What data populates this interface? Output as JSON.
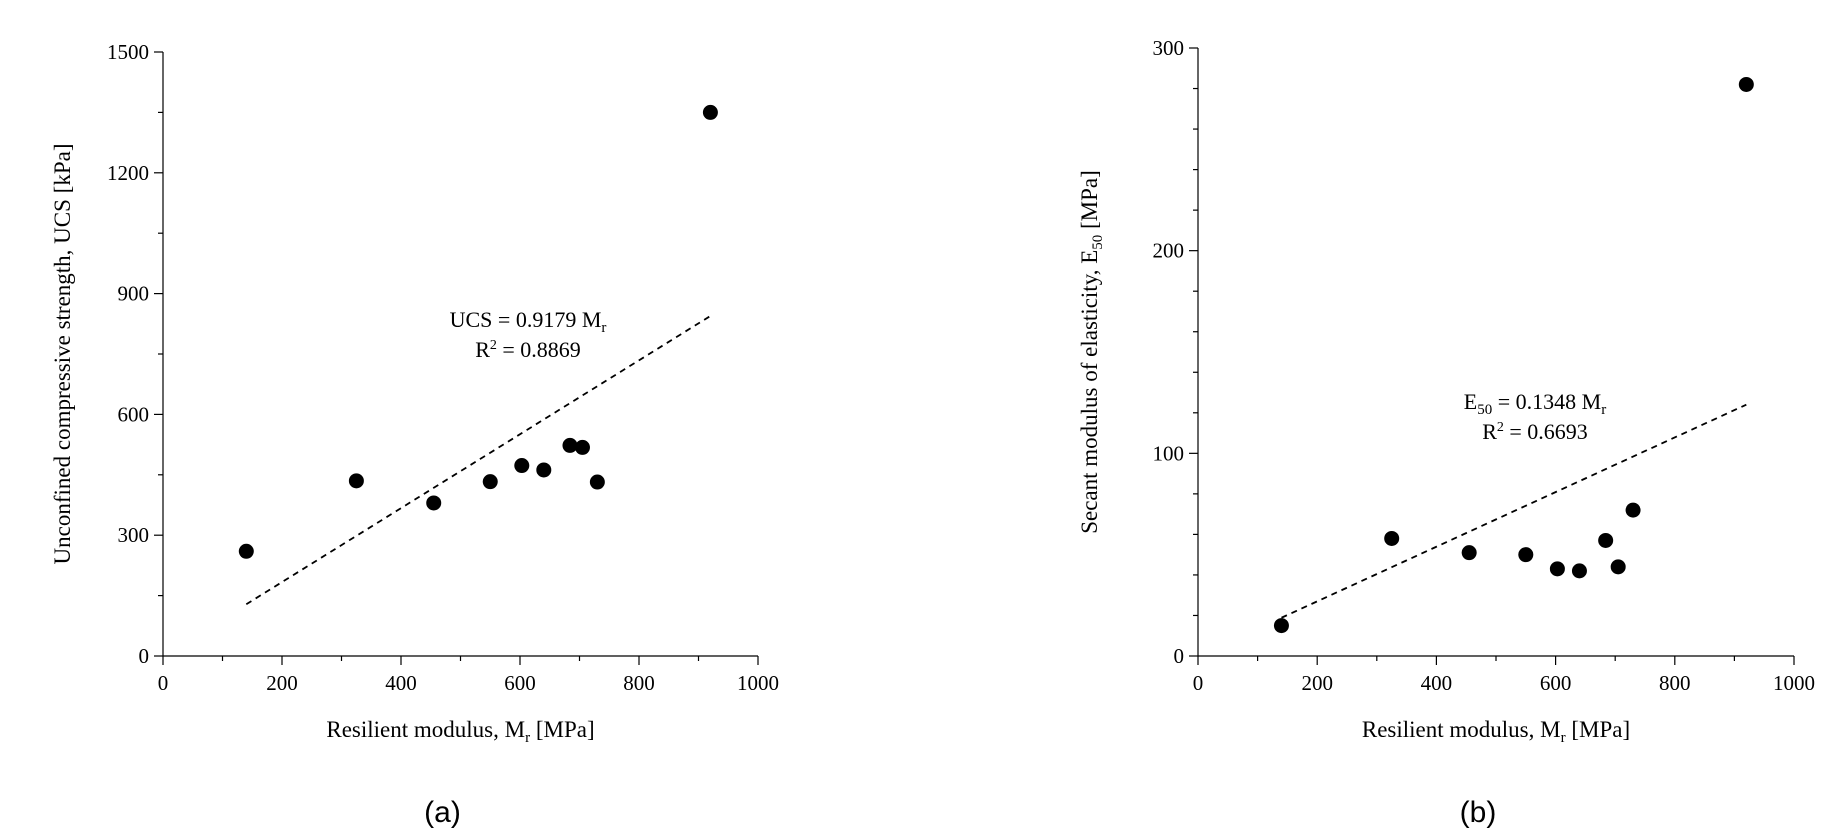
{
  "chart_data": [
    {
      "type": "scatter",
      "panel_label": "(a)",
      "xlabel": {
        "text": "Resilient modulus, M",
        "sub": "r",
        "tail": " [MPa]"
      },
      "ylabel": {
        "text": "Unconfined compressive strength, UCS [kPa]"
      },
      "xlim": [
        0,
        1000
      ],
      "ylim": [
        0,
        1500
      ],
      "xticks": [
        0,
        200,
        400,
        600,
        800,
        1000
      ],
      "yticks": [
        0,
        300,
        600,
        900,
        1200,
        1500
      ],
      "x_minor_step": 100,
      "y_minor_step": 150,
      "points": [
        [
          140,
          260
        ],
        [
          325,
          435
        ],
        [
          455,
          380
        ],
        [
          550,
          433
        ],
        [
          603,
          473
        ],
        [
          640,
          462
        ],
        [
          684,
          523
        ],
        [
          705,
          518
        ],
        [
          730,
          432
        ],
        [
          920,
          1350
        ]
      ],
      "fit": {
        "slope": 0.9179,
        "x_range": [
          140,
          920
        ]
      },
      "annotation": {
        "line1": {
          "text": "UCS = 0.9179 M",
          "sub": "r"
        },
        "line2": {
          "text": "R",
          "sup": "2",
          "tail": " = 0.8869"
        }
      }
    },
    {
      "type": "scatter",
      "panel_label": "(b)",
      "xlabel": {
        "text": "Resilient modulus, M",
        "sub": "r",
        "tail": "  [MPa]"
      },
      "ylabel": {
        "text": "Secant modulus of elasticity, E",
        "sub": "50",
        "tail": " [MPa]"
      },
      "xlim": [
        0,
        1000
      ],
      "ylim": [
        0,
        300
      ],
      "xticks": [
        0,
        200,
        400,
        600,
        800,
        1000
      ],
      "yticks": [
        0,
        100,
        200,
        300
      ],
      "x_minor_step": 100,
      "y_minor_step": 20,
      "points": [
        [
          140,
          15
        ],
        [
          325,
          58
        ],
        [
          455,
          51
        ],
        [
          550,
          50
        ],
        [
          603,
          43
        ],
        [
          640,
          42
        ],
        [
          684,
          57
        ],
        [
          705,
          44
        ],
        [
          730,
          72
        ],
        [
          920,
          282
        ]
      ],
      "fit": {
        "slope": 0.1348,
        "x_range": [
          140,
          920
        ]
      },
      "annotation": {
        "line1": {
          "text": "E",
          "sub": "50",
          "tail": " = 0.1348 M",
          "sub2": "r"
        },
        "line2": {
          "text": "R",
          "sup": "2",
          "tail": " = 0.6693"
        }
      }
    }
  ]
}
